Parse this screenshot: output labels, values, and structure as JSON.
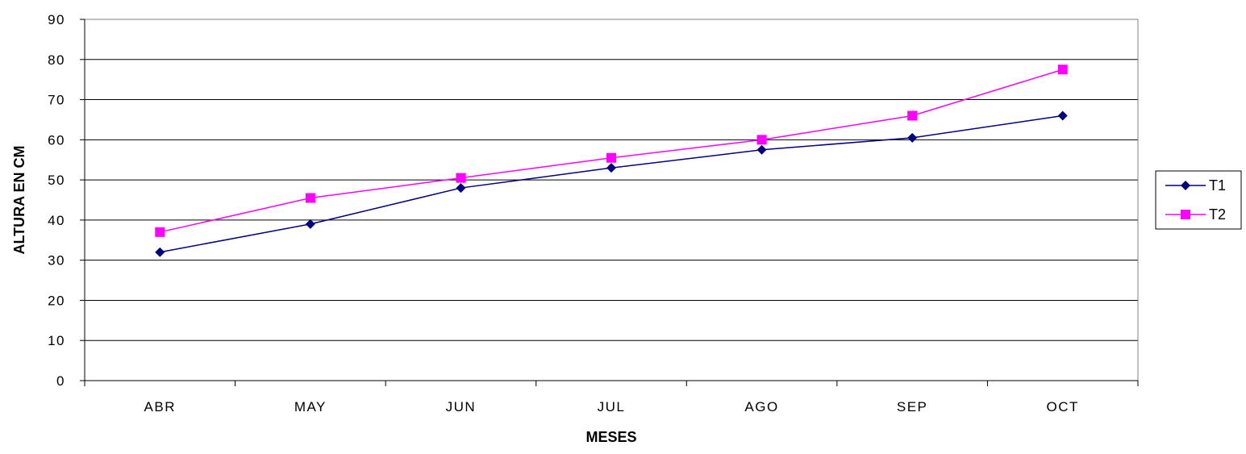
{
  "chart_data": {
    "type": "line",
    "title": "",
    "xlabel": "MESES",
    "ylabel": "ALTURA EN CM",
    "categories": [
      "ABR",
      "MAY",
      "JUN",
      "JUL",
      "AGO",
      "SEP",
      "OCT"
    ],
    "ylim": [
      0,
      90
    ],
    "yticks": [
      0,
      10,
      20,
      30,
      40,
      50,
      60,
      70,
      80,
      90
    ],
    "grid": "horizontal",
    "legend": "right",
    "series": [
      {
        "name": "T1",
        "values": [
          32,
          39,
          48,
          53,
          57.5,
          60.5,
          66
        ],
        "color": "#000080",
        "marker": "diamond"
      },
      {
        "name": "T2",
        "values": [
          37,
          45.5,
          50.5,
          55.5,
          60,
          66,
          77.5
        ],
        "color": "#ff00ff",
        "marker": "square"
      }
    ]
  }
}
